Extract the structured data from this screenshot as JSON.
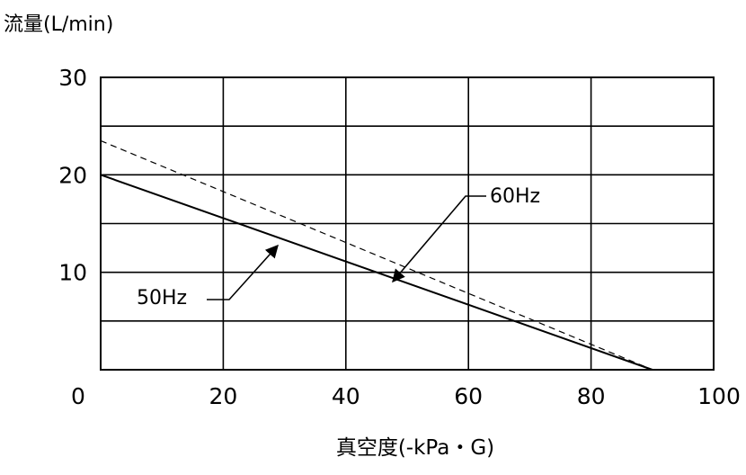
{
  "chart_data": {
    "type": "line",
    "title": "",
    "ylabel": "流量(L/min)",
    "xlabel": "真空度(-kPa・G)",
    "xlim": [
      0,
      100
    ],
    "ylim": [
      0,
      30
    ],
    "x_ticks": [
      0,
      20,
      40,
      60,
      80,
      100
    ],
    "y_ticks": [
      10,
      20,
      30
    ],
    "x_tick_labels": [
      "0",
      "20",
      "40",
      "60",
      "80",
      "100"
    ],
    "y_tick_labels": [
      "10",
      "20",
      "30"
    ],
    "grid": true,
    "series": [
      {
        "name": "50Hz",
        "style": "solid",
        "x": [
          0,
          90
        ],
        "y": [
          20,
          0
        ]
      },
      {
        "name": "60Hz",
        "style": "dashed",
        "x": [
          0,
          90
        ],
        "y": [
          23.5,
          0
        ]
      }
    ],
    "colors": {
      "line": "#000000",
      "grid": "#000000",
      "background": "#ffffff"
    }
  }
}
